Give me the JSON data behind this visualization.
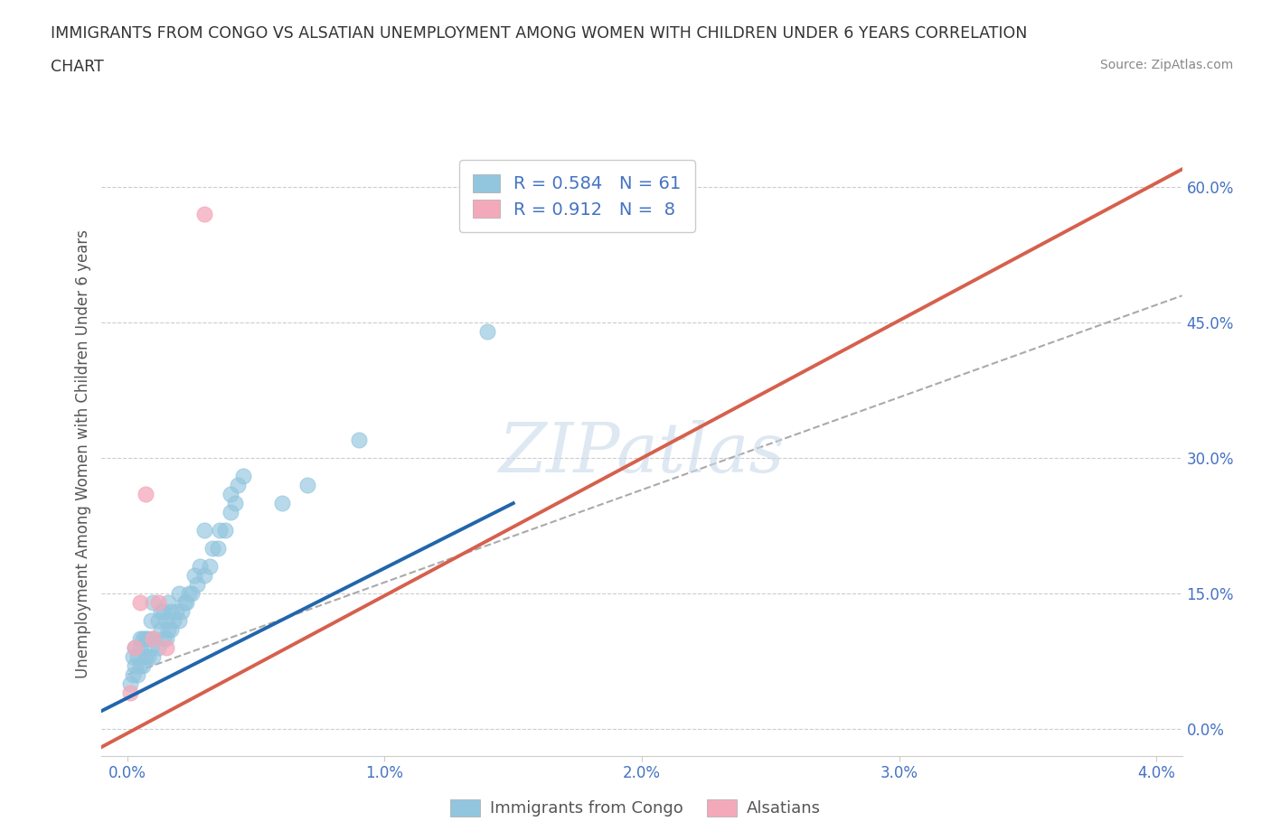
{
  "title_line1": "IMMIGRANTS FROM CONGO VS ALSATIAN UNEMPLOYMENT AMONG WOMEN WITH CHILDREN UNDER 6 YEARS CORRELATION",
  "title_line2": "CHART",
  "source": "Source: ZipAtlas.com",
  "ylabel": "Unemployment Among Women with Children Under 6 years",
  "y_ticks": [
    "0.0%",
    "15.0%",
    "30.0%",
    "45.0%",
    "60.0%"
  ],
  "y_tick_vals": [
    0.0,
    0.15,
    0.3,
    0.45,
    0.6
  ],
  "x_ticks": [
    "0.0%",
    "1.0%",
    "2.0%",
    "3.0%",
    "4.0%"
  ],
  "x_tick_vals": [
    0.0,
    0.01,
    0.02,
    0.03,
    0.04
  ],
  "xlim": [
    -0.001,
    0.041
  ],
  "ylim": [
    -0.03,
    0.64
  ],
  "legend1_r": "0.584",
  "legend1_n": "61",
  "legend2_r": "0.912",
  "legend2_n": "8",
  "blue_color": "#92c5de",
  "pink_color": "#f4a9bb",
  "blue_line_color": "#2166ac",
  "pink_line_color": "#d6604d",
  "watermark_color": "#c8daea",
  "scatter_blue_x": [
    0.0001,
    0.0002,
    0.0002,
    0.0003,
    0.0003,
    0.0004,
    0.0004,
    0.0005,
    0.0005,
    0.0005,
    0.0006,
    0.0006,
    0.0007,
    0.0007,
    0.0008,
    0.0008,
    0.0009,
    0.0009,
    0.001,
    0.001,
    0.001,
    0.0012,
    0.0012,
    0.0013,
    0.0013,
    0.0014,
    0.0014,
    0.0015,
    0.0015,
    0.0016,
    0.0016,
    0.0017,
    0.0017,
    0.0018,
    0.0019,
    0.002,
    0.002,
    0.0021,
    0.0022,
    0.0023,
    0.0024,
    0.0025,
    0.0026,
    0.0027,
    0.0028,
    0.003,
    0.003,
    0.0032,
    0.0033,
    0.0035,
    0.0036,
    0.0038,
    0.004,
    0.004,
    0.0042,
    0.0043,
    0.0045,
    0.006,
    0.007,
    0.009,
    0.014
  ],
  "scatter_blue_y": [
    0.05,
    0.06,
    0.08,
    0.07,
    0.09,
    0.06,
    0.08,
    0.07,
    0.09,
    0.1,
    0.07,
    0.1,
    0.08,
    0.1,
    0.08,
    0.1,
    0.09,
    0.12,
    0.08,
    0.1,
    0.14,
    0.09,
    0.12,
    0.11,
    0.13,
    0.1,
    0.13,
    0.1,
    0.12,
    0.11,
    0.14,
    0.11,
    0.13,
    0.12,
    0.13,
    0.12,
    0.15,
    0.13,
    0.14,
    0.14,
    0.15,
    0.15,
    0.17,
    0.16,
    0.18,
    0.17,
    0.22,
    0.18,
    0.2,
    0.2,
    0.22,
    0.22,
    0.24,
    0.26,
    0.25,
    0.27,
    0.28,
    0.25,
    0.27,
    0.32,
    0.44
  ],
  "scatter_pink_x": [
    0.0001,
    0.0003,
    0.0005,
    0.0007,
    0.001,
    0.0012,
    0.0015,
    0.003
  ],
  "scatter_pink_y": [
    0.04,
    0.09,
    0.14,
    0.26,
    0.1,
    0.14,
    0.09,
    0.57
  ],
  "blue_line_x": [
    -0.001,
    0.015
  ],
  "blue_line_y": [
    0.02,
    0.25
  ],
  "pink_line_x": [
    -0.001,
    0.041
  ],
  "pink_line_y": [
    -0.02,
    0.62
  ],
  "dash_line_x": [
    0.0,
    0.041
  ],
  "dash_line_y": [
    0.06,
    0.48
  ]
}
